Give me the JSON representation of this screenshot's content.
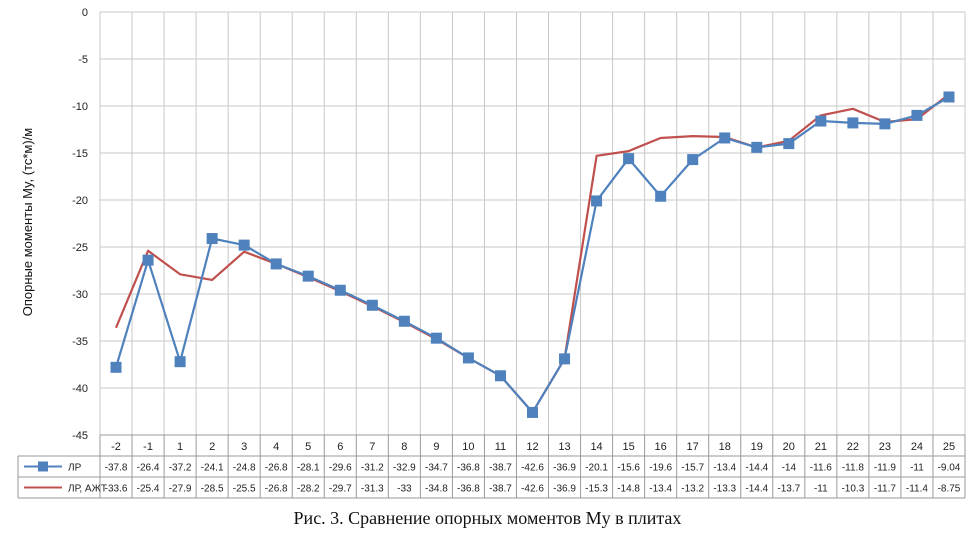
{
  "chart_data": {
    "type": "line",
    "ylabel": "Опорные моменты My, (тс*м)/м",
    "caption": "Рис. 3. Сравнение опорных моментов My в плитах",
    "ylim": [
      -45,
      0
    ],
    "yticks": [
      0,
      -5,
      -10,
      -15,
      -20,
      -25,
      -30,
      -35,
      -40,
      -45
    ],
    "ytick_labels": [
      "0",
      "-5",
      "-10",
      "-15",
      "-20",
      "-25",
      "-30",
      "-35",
      "-40",
      "-45"
    ],
    "grid": true,
    "legend": "data-table-left",
    "categories": [
      "-2",
      "-1",
      "1",
      "2",
      "3",
      "4",
      "5",
      "6",
      "7",
      "8",
      "9",
      "10",
      "11",
      "12",
      "13",
      "14",
      "15",
      "16",
      "17",
      "18",
      "19",
      "20",
      "21",
      "22",
      "23",
      "24",
      "25"
    ],
    "series": [
      {
        "name": "ЛР",
        "color": "#4f81bd",
        "marker": "square",
        "values": [
          -37.8,
          -26.4,
          -37.2,
          -24.1,
          -24.8,
          -26.8,
          -28.1,
          -29.6,
          -31.2,
          -32.9,
          -34.7,
          -36.8,
          -38.7,
          -42.6,
          -36.9,
          -20.1,
          -15.6,
          -19.6,
          -15.7,
          -13.4,
          -14.4,
          -14,
          -11.6,
          -11.8,
          -11.9,
          -11,
          -9.04
        ]
      },
      {
        "name": "ЛР, АЖТ",
        "color": "#c0504d",
        "marker": "none",
        "values": [
          -33.6,
          -25.4,
          -27.9,
          -28.5,
          -25.5,
          -26.8,
          -28.2,
          -29.7,
          -31.3,
          -33,
          -34.8,
          -36.8,
          -38.7,
          -42.6,
          -36.9,
          -15.3,
          -14.8,
          -13.4,
          -13.2,
          -13.3,
          -14.4,
          -13.7,
          -11,
          -10.3,
          -11.7,
          -11.4,
          -8.75
        ]
      }
    ]
  }
}
